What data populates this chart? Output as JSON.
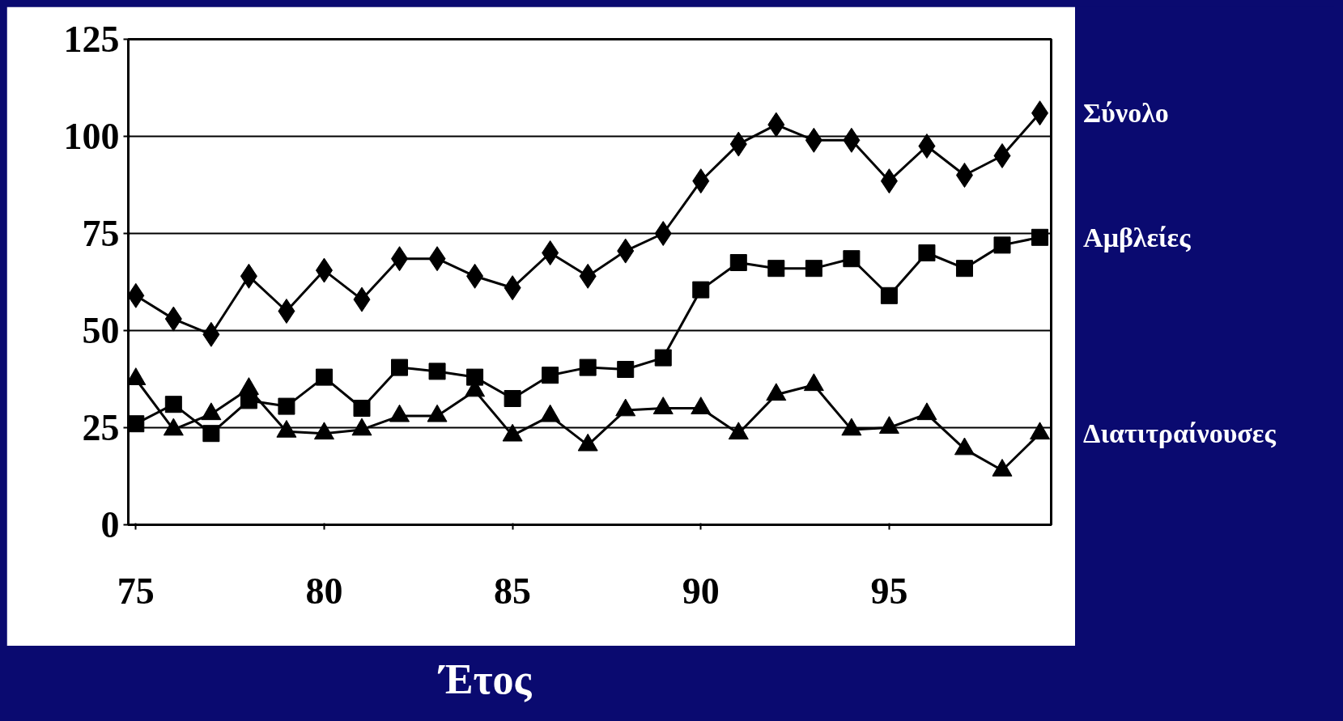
{
  "chart_data": {
    "type": "line",
    "xlabel": "Έτος",
    "x": [
      75,
      76,
      77,
      78,
      79,
      80,
      81,
      82,
      83,
      84,
      85,
      86,
      87,
      88,
      89,
      90,
      91,
      92,
      93,
      94,
      95,
      96,
      97,
      98,
      99
    ],
    "series": [
      {
        "name": "Σύνολο",
        "color": "#000000",
        "marker": "diamond",
        "values": [
          59,
          53,
          49,
          64,
          55,
          65.5,
          58,
          68.5,
          68.5,
          64,
          61,
          70,
          64,
          70.5,
          75,
          88.5,
          98,
          103,
          99,
          99,
          88.5,
          97.5,
          90,
          95,
          106
        ]
      },
      {
        "name": "Αμβλείες",
        "color": "#000000",
        "marker": "square",
        "values": [
          26,
          31,
          23.5,
          32,
          30.5,
          38,
          30,
          40.5,
          39.5,
          38,
          32.5,
          38.5,
          40.5,
          40,
          43,
          60.5,
          67.5,
          66,
          66,
          68.5,
          59,
          70,
          66,
          72,
          74
        ]
      },
      {
        "name": "Διατιτραίνουσες",
        "color": "#000000",
        "marker": "triangle",
        "values": [
          37.5,
          24.5,
          28.5,
          35,
          24,
          23.5,
          24.5,
          28,
          28,
          34.5,
          23,
          28,
          20.5,
          29.5,
          30,
          30,
          23.5,
          33.5,
          36,
          24.5,
          25,
          28.5,
          19.5,
          14,
          23.5
        ]
      }
    ],
    "xlim": [
      74.8,
      99.3
    ],
    "ylim": [
      0,
      125
    ],
    "xticks": [
      75,
      80,
      85,
      90,
      95
    ],
    "yticks": [
      0,
      25,
      50,
      75,
      100,
      125
    ],
    "grid": "y",
    "line_style": "solid"
  }
}
